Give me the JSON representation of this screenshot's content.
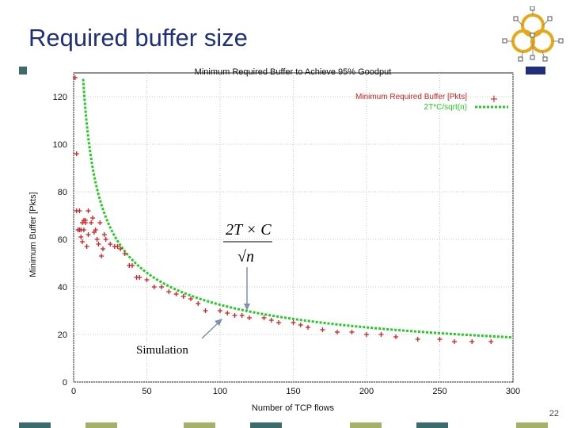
{
  "slide": {
    "title": "Required buffer size",
    "page_number": "22"
  },
  "colors": {
    "title": "#1f2f7a",
    "navy": "#1f2f7a",
    "olive": "#a5b06b",
    "teal": "#3d6b6b",
    "sim_red": "#d42020",
    "model_green": "#22cc22"
  },
  "icons": {
    "logo": "network-rings-logo",
    "arrow": "arrow-icon"
  },
  "chart_data": {
    "type": "scatter",
    "title": "Minimum Required Buffer to Achieve 95% Goodput",
    "xlabel": "Number of TCP flows",
    "ylabel": "Minimum Buffer [Pkts]",
    "xlim": [
      0,
      300
    ],
    "ylim": [
      0,
      130
    ],
    "xticks": [
      "0",
      "50",
      "100",
      "150",
      "200",
      "250",
      "300"
    ],
    "yticks": [
      "0",
      "20",
      "40",
      "60",
      "80",
      "100",
      "120"
    ],
    "grid": true,
    "legend_position": "top-right",
    "annotations": {
      "formula_numerator": "2T × C",
      "formula_denominator": "√n",
      "simulation": "Simulation"
    },
    "series": [
      {
        "name": "Minimum Required Buffer [Pkts]",
        "style": "plus-markers",
        "x": [
          1,
          2,
          2,
          3,
          4,
          4,
          5,
          5,
          6,
          6,
          7,
          7,
          8,
          8,
          9,
          10,
          10,
          12,
          13,
          14,
          15,
          16,
          17,
          18,
          19,
          20,
          21,
          22,
          25,
          28,
          30,
          32,
          35,
          38,
          40,
          43,
          45,
          50,
          55,
          60,
          65,
          70,
          75,
          80,
          85,
          90,
          100,
          105,
          110,
          115,
          120,
          130,
          135,
          140,
          150,
          155,
          160,
          170,
          180,
          190,
          200,
          210,
          220,
          235,
          250,
          260,
          272,
          285
        ],
        "y": [
          128,
          96,
          72,
          64,
          72,
          64,
          61,
          64,
          59,
          67,
          64,
          68,
          68,
          67,
          57,
          62,
          72,
          67,
          69,
          63,
          64,
          60,
          58,
          67,
          53,
          56,
          62,
          60,
          58,
          57,
          57,
          56,
          54,
          49,
          49,
          44,
          44,
          43,
          40,
          40,
          38,
          37,
          36,
          35,
          33,
          30,
          30,
          29,
          28,
          28,
          27,
          27,
          26,
          25,
          25,
          24,
          23,
          22,
          21,
          21,
          20,
          20,
          19,
          18,
          18,
          17,
          17,
          17
        ]
      },
      {
        "name": "2T*C/sqrt(n)",
        "style": "dashed-line",
        "formula": "325/sqrt(n)",
        "x_range": [
          1,
          300
        ]
      }
    ]
  }
}
